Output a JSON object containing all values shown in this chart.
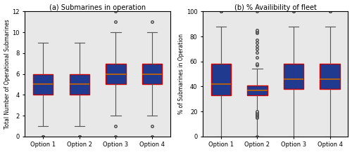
{
  "title_a": "(a) Submarines in operation",
  "title_b": "(b) % Availibility of fleet",
  "ylabel_a": "Total Number of Operational Submarines",
  "ylabel_b": "% of Submarines in Operation",
  "xlabel": [
    "Option 1",
    "Option 2",
    "Option 3",
    "Option 4"
  ],
  "box_facecolor": "#1f3a8f",
  "box_edgecolor": "#cc0000",
  "median_color": "#cc6600",
  "whisker_color": "#555555",
  "cap_color": "#555555",
  "flier_marker": "o",
  "flier_markerfacecolor": "white",
  "flier_markeredgecolor": "#444444",
  "axbg_color": "#e8e8e8",
  "plot_a": {
    "stats": [
      {
        "med": 5.0,
        "q1": 4.0,
        "q3": 6.0,
        "whislo": 1.0,
        "whishi": 9.0,
        "fliers": [
          0,
          0
        ]
      },
      {
        "med": 5.0,
        "q1": 4.0,
        "q3": 6.0,
        "whislo": 1.0,
        "whishi": 9.0,
        "fliers": [
          0,
          0
        ]
      },
      {
        "med": 6.0,
        "q1": 5.0,
        "q3": 7.0,
        "whislo": 2.0,
        "whishi": 10.0,
        "fliers": [
          0,
          1,
          11,
          12
        ]
      },
      {
        "med": 6.0,
        "q1": 5.0,
        "q3": 7.0,
        "whislo": 2.0,
        "whishi": 10.0,
        "fliers": [
          0,
          1,
          11
        ]
      }
    ],
    "ylim": [
      0,
      12
    ],
    "yticks": [
      0,
      2,
      4,
      6,
      8,
      10,
      12
    ]
  },
  "plot_b": {
    "stats": [
      {
        "med": 42.0,
        "q1": 33.0,
        "q3": 58.0,
        "whislo": 0.0,
        "whishi": 88.0,
        "fliers": [
          100,
          100
        ]
      },
      {
        "med": 37.0,
        "q1": 33.0,
        "q3": 41.0,
        "whislo": 0.0,
        "whishi": 54.0,
        "fliers": [
          0,
          15,
          16,
          17,
          18,
          19,
          20,
          57,
          58,
          63,
          67,
          70,
          72,
          75,
          77,
          83,
          84,
          85,
          100
        ]
      },
      {
        "med": 46.0,
        "q1": 38.0,
        "q3": 58.0,
        "whislo": 0.0,
        "whishi": 88.0,
        "fliers": [
          100,
          100
        ]
      },
      {
        "med": 46.0,
        "q1": 38.0,
        "q3": 58.0,
        "whislo": 0.0,
        "whishi": 88.0,
        "fliers": [
          100,
          100
        ]
      }
    ],
    "ylim": [
      0,
      100
    ],
    "yticks": [
      0,
      20,
      40,
      60,
      80,
      100
    ]
  },
  "figsize": [
    5.0,
    2.17
  ],
  "dpi": 100
}
